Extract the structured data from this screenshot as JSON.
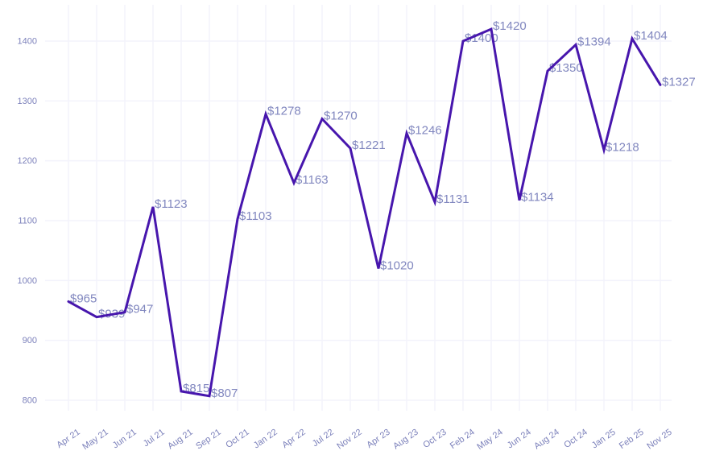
{
  "chart_data": {
    "type": "line",
    "title": "",
    "xlabel": "",
    "ylabel": "",
    "categories": [
      "Apr 21",
      "May 21",
      "Jun 21",
      "Jul 21",
      "Aug 21",
      "Sep 21",
      "Oct 21",
      "Jan 22",
      "Apr 22",
      "Jul 22",
      "Nov 22",
      "Apr 23",
      "Aug 23",
      "Oct 23",
      "Feb 24",
      "May 24",
      "Jun 24",
      "Aug 24",
      "Oct 24",
      "Jan 25",
      "Feb 25",
      "Nov 25"
    ],
    "values": [
      965,
      939,
      947,
      1123,
      815,
      807,
      1103,
      1278,
      1163,
      1270,
      1221,
      1020,
      1246,
      1131,
      1400,
      1420,
      1134,
      1350,
      1394,
      1218,
      1404,
      1327
    ],
    "data_labels": [
      "$965",
      "$939",
      "$947",
      "$1123",
      "$815",
      "$807",
      "$1103",
      "$1278",
      "$1163",
      "$1270",
      "$1221",
      "$1020",
      "$1246",
      "$1131",
      "$1400",
      "$1420",
      "$1134",
      "$1350",
      "$1394",
      "$1218",
      "$1404",
      "$1327"
    ],
    "currency_prefix": "$",
    "ylim": [
      800,
      1400
    ],
    "yticks": [
      800,
      900,
      1000,
      1100,
      1200,
      1300,
      1400
    ],
    "grid": true,
    "legend": false,
    "colors": {
      "line": "#4716ad",
      "data_label": "#8187bf",
      "axis_label": "#7c81bb",
      "gridline": "#f3f3fb",
      "background": "#ffffff"
    }
  }
}
